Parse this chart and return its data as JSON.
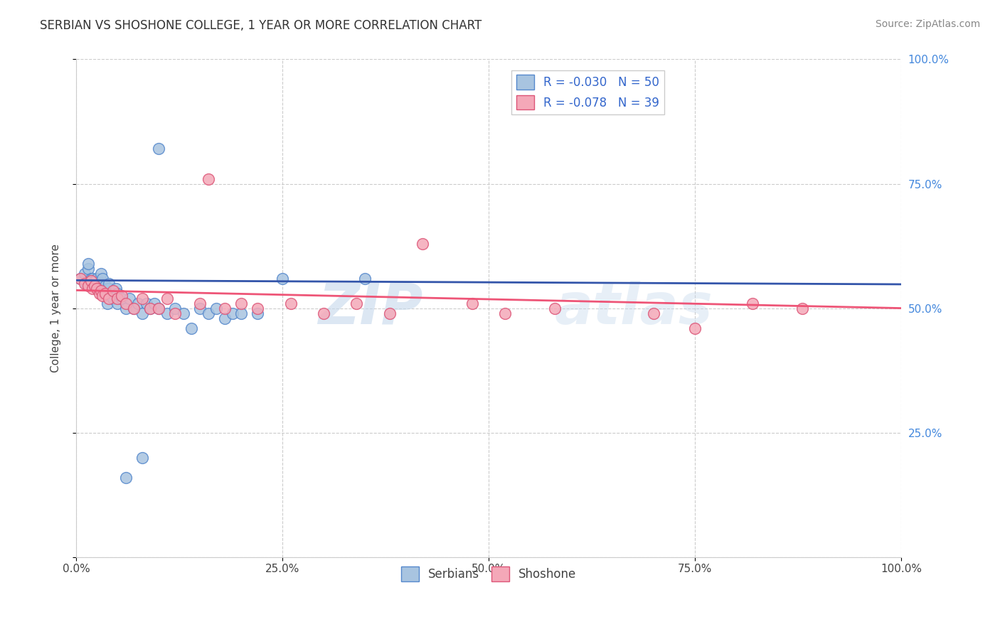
{
  "title": "SERBIAN VS SHOSHONE COLLEGE, 1 YEAR OR MORE CORRELATION CHART",
  "source": "Source: ZipAtlas.com",
  "ylabel": "College, 1 year or more",
  "xlim": [
    0,
    1.0
  ],
  "ylim": [
    0,
    1.0
  ],
  "xticks": [
    0.0,
    0.25,
    0.5,
    0.75,
    1.0
  ],
  "xtick_labels": [
    "0.0%",
    "25.0%",
    "50.0%",
    "75.0%",
    "100.0%"
  ],
  "yticks": [
    0.0,
    0.25,
    0.5,
    0.75,
    1.0
  ],
  "ytick_labels": [
    "",
    "25.0%",
    "50.0%",
    "75.0%",
    "100.0%"
  ],
  "legend_r1": "R = -0.030",
  "legend_n1": "N = 50",
  "legend_r2": "R = -0.078",
  "legend_n2": "N = 39",
  "serbian_color": "#a8c4e0",
  "shoshone_color": "#f4a8b8",
  "serbian_edge": "#5588cc",
  "shoshone_edge": "#dd5577",
  "trend_serbian_color": "#3355aa",
  "trend_shoshone_color": "#ee5577",
  "watermark": "ZIPAtlas",
  "serbian_x": [
    0.005,
    0.01,
    0.012,
    0.015,
    0.015,
    0.018,
    0.02,
    0.022,
    0.025,
    0.025,
    0.028,
    0.03,
    0.03,
    0.032,
    0.035,
    0.035,
    0.038,
    0.04,
    0.04,
    0.042,
    0.045,
    0.048,
    0.05,
    0.05,
    0.055,
    0.06,
    0.065,
    0.07,
    0.075,
    0.08,
    0.085,
    0.09,
    0.095,
    0.1,
    0.11,
    0.12,
    0.13,
    0.14,
    0.15,
    0.16,
    0.17,
    0.18,
    0.19,
    0.2,
    0.22,
    0.25,
    0.1,
    0.35,
    0.08,
    0.06
  ],
  "serbian_y": [
    0.56,
    0.57,
    0.55,
    0.58,
    0.59,
    0.56,
    0.56,
    0.555,
    0.545,
    0.56,
    0.54,
    0.57,
    0.55,
    0.56,
    0.53,
    0.545,
    0.51,
    0.54,
    0.55,
    0.53,
    0.52,
    0.54,
    0.51,
    0.53,
    0.52,
    0.5,
    0.52,
    0.5,
    0.51,
    0.49,
    0.51,
    0.5,
    0.51,
    0.5,
    0.49,
    0.5,
    0.49,
    0.46,
    0.5,
    0.49,
    0.5,
    0.48,
    0.49,
    0.49,
    0.49,
    0.56,
    0.82,
    0.56,
    0.2,
    0.16
  ],
  "shoshone_x": [
    0.005,
    0.01,
    0.015,
    0.018,
    0.02,
    0.022,
    0.025,
    0.028,
    0.03,
    0.032,
    0.035,
    0.04,
    0.045,
    0.05,
    0.055,
    0.06,
    0.07,
    0.08,
    0.09,
    0.1,
    0.11,
    0.12,
    0.15,
    0.16,
    0.18,
    0.2,
    0.22,
    0.26,
    0.3,
    0.34,
    0.38,
    0.42,
    0.48,
    0.52,
    0.58,
    0.7,
    0.75,
    0.82,
    0.88
  ],
  "shoshone_y": [
    0.56,
    0.55,
    0.545,
    0.555,
    0.54,
    0.545,
    0.54,
    0.53,
    0.535,
    0.525,
    0.53,
    0.52,
    0.535,
    0.52,
    0.525,
    0.51,
    0.5,
    0.52,
    0.5,
    0.5,
    0.52,
    0.49,
    0.51,
    0.76,
    0.5,
    0.51,
    0.5,
    0.51,
    0.49,
    0.51,
    0.49,
    0.63,
    0.51,
    0.49,
    0.5,
    0.49,
    0.46,
    0.51,
    0.5
  ]
}
